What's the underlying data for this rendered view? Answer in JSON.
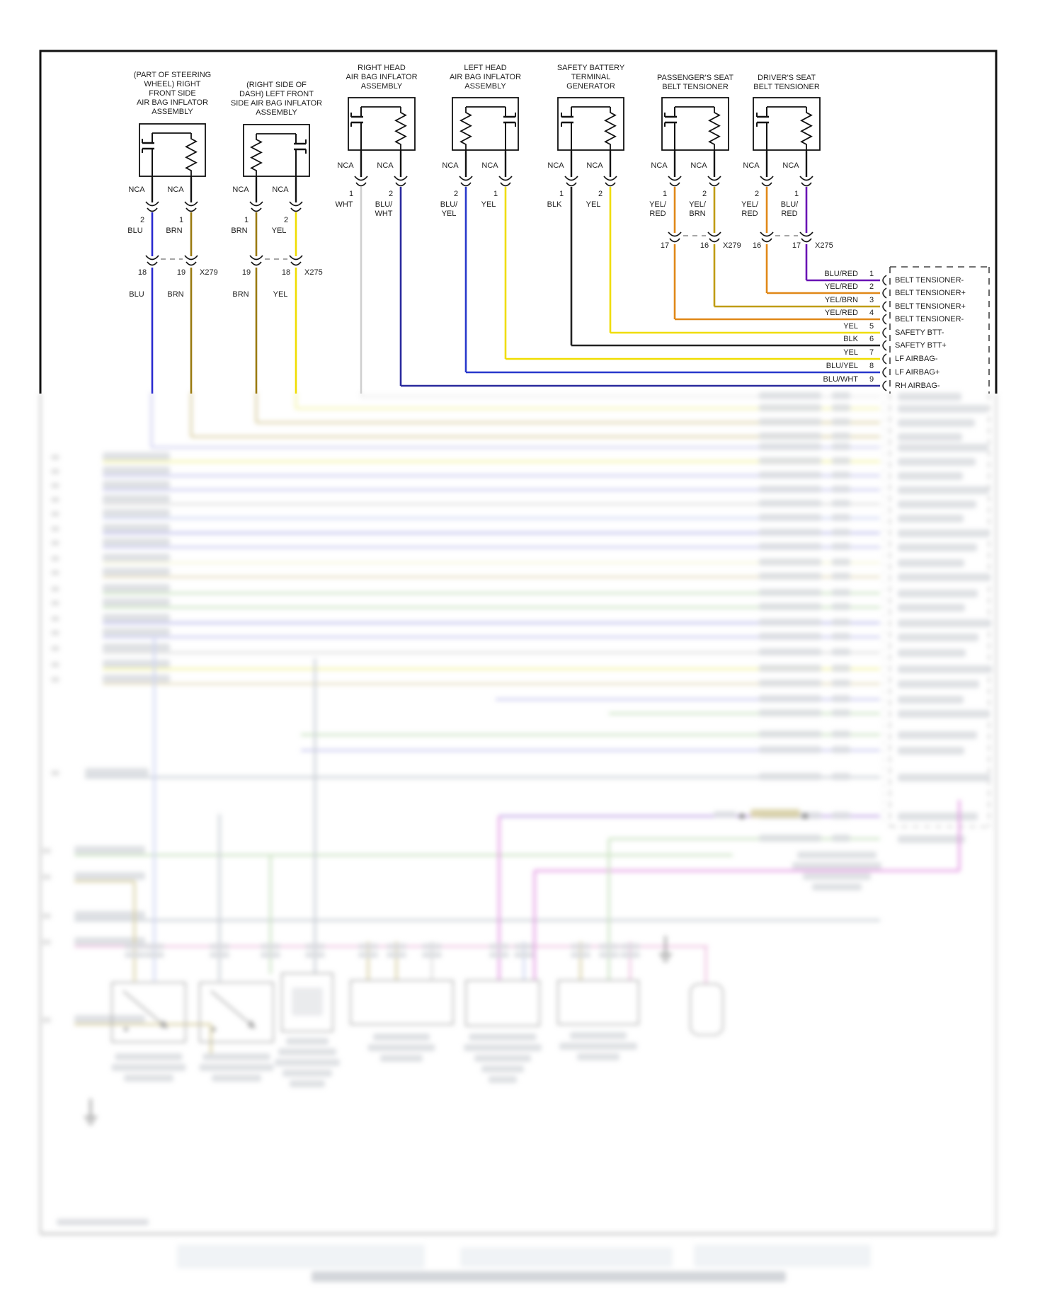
{
  "diagram": {
    "kind": "airbag-srs-wiring-diagram",
    "background": "#ffffff",
    "border_color": "#111111",
    "colors": {
      "BLU": "#2a2ad0",
      "BRN": "#9a7a10",
      "YEL": "#f0dd00",
      "WHT": "#cfcfcf",
      "BLK": "#222222",
      "BLU/WHT": "#2a2a9e",
      "BLU/YEL": "#2838cc",
      "YEL/RED": "#e08818",
      "YEL/BRN": "#c09c14",
      "BLU/RED": "#6812b4",
      "stub_black": "#111111"
    },
    "faded_palette": {
      "lav": "#9d9de0",
      "lv2": "#8585d8",
      "lpb": "#a8b4e8",
      "yel2": "#e8e858",
      "pyl": "#eeeebb",
      "tan": "#cfc08a",
      "tan2": "#b09a40",
      "khk": "#b8a855",
      "grn": "#9cc98c",
      "gry": "#c2c2c2",
      "slt": "#9aa4b0",
      "pur": "#8a5ad0",
      "mag": "#cc44cc",
      "pnk": "#e090c8",
      "wht": "#d8d8d8",
      "blob": "#b9bdc4",
      "blk": "#333333",
      "ghost": "#dde4ea",
      "bar": "#7a8290"
    },
    "components": [
      {
        "title": "(PART OF STEERING\nWHEEL) RIGHT\nFRONT SIDE\nAIR BAG INFLATOR\nASSEMBLY",
        "nca": [
          "NCA",
          "NCA"
        ],
        "pins": [
          {
            "num": "2",
            "color_label": "BLU",
            "color_key": "BLU"
          },
          {
            "num": "1",
            "color_label": "BRN",
            "color_key": "BRN"
          }
        ],
        "connector": {
          "left_pin": "18",
          "right_pin": "19",
          "name": "X279"
        },
        "below_colors": [
          "BLU",
          "BRN"
        ]
      },
      {
        "title": "(RIGHT SIDE OF\nDASH) LEFT FRONT\nSIDE AIR BAG INFLATOR\nASSEMBLY",
        "nca": [
          "NCA",
          "NCA"
        ],
        "pins": [
          {
            "num": "1",
            "color_label": "BRN",
            "color_key": "BRN"
          },
          {
            "num": "2",
            "color_label": "YEL",
            "color_key": "YEL"
          }
        ],
        "connector": {
          "left_pin": "19",
          "right_pin": "18",
          "name": "X275"
        },
        "below_colors": [
          "BRN",
          "YEL"
        ]
      },
      {
        "title": "RIGHT HEAD\nAIR BAG INFLATOR\nASSEMBLY",
        "nca": [
          "NCA",
          "NCA"
        ],
        "pins": [
          {
            "num": "1",
            "color_label": "WHT",
            "color_key": "WHT"
          },
          {
            "num": "2",
            "color_label": "BLU/\nWHT",
            "color_key": "BLU/WHT"
          }
        ]
      },
      {
        "title": "LEFT HEAD\nAIR BAG INFLATOR\nASSEMBLY",
        "nca": [
          "NCA",
          "NCA"
        ],
        "pins": [
          {
            "num": "2",
            "color_label": "BLU/\nYEL",
            "color_key": "BLU/YEL"
          },
          {
            "num": "1",
            "color_label": "YEL",
            "color_key": "YEL"
          }
        ]
      },
      {
        "title": "SAFETY BATTERY\nTERMINAL\nGENERATOR",
        "nca": [
          "NCA",
          "NCA"
        ],
        "pins": [
          {
            "num": "1",
            "color_label": "BLK",
            "color_key": "BLK"
          },
          {
            "num": "2",
            "color_label": "YEL",
            "color_key": "YEL"
          }
        ]
      },
      {
        "title": "PASSENGER'S SEAT\nBELT TENSIONER",
        "nca": [
          "NCA",
          "NCA"
        ],
        "pins": [
          {
            "num": "1",
            "color_label": "YEL/\nRED",
            "color_key": "YEL/RED"
          },
          {
            "num": "2",
            "color_label": "YEL/\nBRN",
            "color_key": "YEL/BRN"
          }
        ],
        "connector": {
          "left_pin": "17",
          "right_pin": "16",
          "name": "X279"
        }
      },
      {
        "title": "DRIVER'S SEAT\nBELT TENSIONER",
        "nca": [
          "NCA",
          "NCA"
        ],
        "pins": [
          {
            "num": "2",
            "color_label": "YEL/\nRED",
            "color_key": "YEL/RED"
          },
          {
            "num": "1",
            "color_label": "BLU/\nRED",
            "color_key": "BLU/RED"
          }
        ],
        "connector": {
          "left_pin": "16",
          "right_pin": "17",
          "name": "X275"
        }
      }
    ],
    "ecu": {
      "rows": [
        {
          "color": "BLU/RED",
          "pin": "1",
          "signal": "BELT TENSIONER-"
        },
        {
          "color": "YEL/RED",
          "pin": "2",
          "signal": "BELT TENSIONER+"
        },
        {
          "color": "YEL/BRN",
          "pin": "3",
          "signal": "BELT TENSIONER+"
        },
        {
          "color": "YEL/RED",
          "pin": "4",
          "signal": "BELT TENSIONER-"
        },
        {
          "color": "YEL",
          "pin": "5",
          "signal": "SAFETY BTT-"
        },
        {
          "color": "BLK",
          "pin": "6",
          "signal": "SAFETY BTT+"
        },
        {
          "color": "YEL",
          "pin": "7",
          "signal": "LF AIRBAG-"
        },
        {
          "color": "BLU/YEL",
          "pin": "8",
          "signal": "LF AIRBAG+"
        },
        {
          "color": "BLU/WHT",
          "pin": "9",
          "signal": "RH AIRBAG-"
        }
      ]
    }
  }
}
